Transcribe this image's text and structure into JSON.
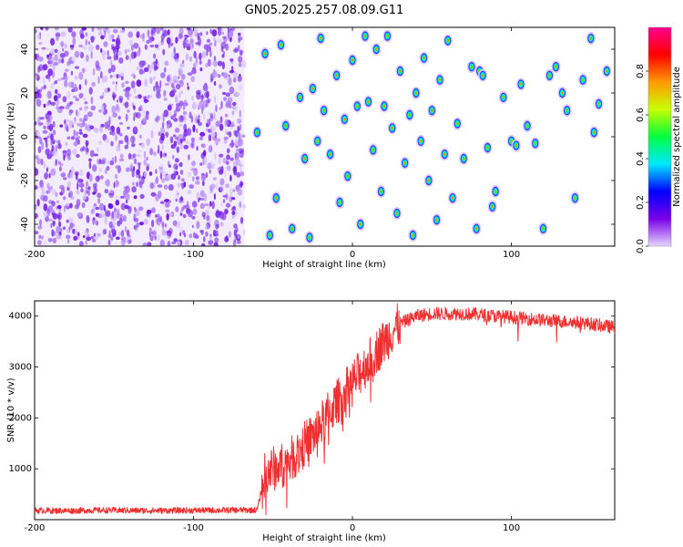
{
  "title": "GN05.2025.257.08.09.G11",
  "chart_data": [
    {
      "type": "heatmap",
      "xlabel": "Height of straight line (km)",
      "ylabel": "Frequency (Hz)",
      "xlim": [
        -200,
        165
      ],
      "ylim": [
        -50,
        50
      ],
      "x_ticks": [
        -200,
        -100,
        0,
        100
      ],
      "y_ticks": [
        -40,
        -20,
        0,
        20,
        40
      ],
      "colorbar": {
        "label": "Normalized spectral amplitude",
        "range": [
          0,
          1
        ],
        "ticks": [
          "0.0",
          "0.2",
          "0.4",
          "0.6",
          "0.8"
        ],
        "colors": [
          "#e8d4ff",
          "#7a00e8",
          "#0000ff",
          "#00e8ff",
          "#00ff40",
          "#c8ff00",
          "#ff9a00",
          "#ff0000",
          "#ff0090"
        ]
      },
      "noise_region": {
        "x_range": [
          -200,
          -68
        ],
        "color": "#7a2ae8"
      },
      "features": [
        {
          "x": -60,
          "y": 2
        },
        {
          "x": -55,
          "y": 38
        },
        {
          "x": -52,
          "y": -45
        },
        {
          "x": -48,
          "y": -28
        },
        {
          "x": -45,
          "y": 42
        },
        {
          "x": -42,
          "y": 5
        },
        {
          "x": -38,
          "y": -42
        },
        {
          "x": -33,
          "y": 18
        },
        {
          "x": -30,
          "y": -10
        },
        {
          "x": -27,
          "y": -46
        },
        {
          "x": -25,
          "y": 22
        },
        {
          "x": -22,
          "y": -2
        },
        {
          "x": -20,
          "y": 45
        },
        {
          "x": -18,
          "y": 12
        },
        {
          "x": -14,
          "y": -8
        },
        {
          "x": -10,
          "y": 28
        },
        {
          "x": -8,
          "y": -30
        },
        {
          "x": -5,
          "y": 8
        },
        {
          "x": -3,
          "y": -18
        },
        {
          "x": 0,
          "y": 35
        },
        {
          "x": 3,
          "y": 14
        },
        {
          "x": 5,
          "y": -40
        },
        {
          "x": 8,
          "y": 46
        },
        {
          "x": 10,
          "y": 16
        },
        {
          "x": 13,
          "y": -6
        },
        {
          "x": 15,
          "y": 40
        },
        {
          "x": 18,
          "y": -25
        },
        {
          "x": 20,
          "y": 14
        },
        {
          "x": 22,
          "y": 46
        },
        {
          "x": 25,
          "y": 4
        },
        {
          "x": 28,
          "y": -35
        },
        {
          "x": 30,
          "y": 30
        },
        {
          "x": 33,
          "y": -12
        },
        {
          "x": 36,
          "y": 10
        },
        {
          "x": 38,
          "y": -45
        },
        {
          "x": 40,
          "y": 20
        },
        {
          "x": 43,
          "y": -2
        },
        {
          "x": 45,
          "y": 36
        },
        {
          "x": 48,
          "y": -20
        },
        {
          "x": 50,
          "y": 12
        },
        {
          "x": 53,
          "y": -38
        },
        {
          "x": 55,
          "y": 26
        },
        {
          "x": 58,
          "y": -8
        },
        {
          "x": 60,
          "y": 44
        },
        {
          "x": 63,
          "y": -28
        },
        {
          "x": 66,
          "y": 6
        },
        {
          "x": 70,
          "y": -10
        },
        {
          "x": 75,
          "y": 32
        },
        {
          "x": 78,
          "y": -42
        },
        {
          "x": 80,
          "y": 30
        },
        {
          "x": 82,
          "y": 28
        },
        {
          "x": 85,
          "y": -5
        },
        {
          "x": 88,
          "y": -32
        },
        {
          "x": 90,
          "y": -25
        },
        {
          "x": 95,
          "y": 18
        },
        {
          "x": 100,
          "y": -2
        },
        {
          "x": 103,
          "y": -4
        },
        {
          "x": 106,
          "y": 24
        },
        {
          "x": 110,
          "y": 5
        },
        {
          "x": 115,
          "y": -3
        },
        {
          "x": 120,
          "y": -42
        },
        {
          "x": 124,
          "y": 28
        },
        {
          "x": 128,
          "y": 32
        },
        {
          "x": 132,
          "y": 20
        },
        {
          "x": 135,
          "y": 12
        },
        {
          "x": 140,
          "y": -28
        },
        {
          "x": 145,
          "y": 26
        },
        {
          "x": 150,
          "y": 45
        },
        {
          "x": 152,
          "y": 2
        },
        {
          "x": 155,
          "y": 15
        },
        {
          "x": 160,
          "y": 30
        }
      ]
    },
    {
      "type": "line",
      "xlabel": "Height of straight line (km)",
      "ylabel": "SNR (10 * v/v)",
      "xlim": [
        -200,
        165
      ],
      "ylim": [
        0,
        4300
      ],
      "x_ticks": [
        -200,
        -100,
        0,
        100
      ],
      "y_ticks": [
        1000,
        2000,
        3000,
        4000
      ],
      "series": [
        {
          "color": "#f03030",
          "x": [
            -200,
            -180,
            -160,
            -140,
            -120,
            -100,
            -80,
            -60,
            -57,
            -55,
            -50,
            -45,
            -40,
            -35,
            -30,
            -25,
            -20,
            -15,
            -10,
            -5,
            0,
            5,
            10,
            15,
            20,
            25,
            30,
            40,
            50,
            60,
            70,
            80,
            90,
            100,
            110,
            120,
            130,
            140,
            150,
            160,
            165
          ],
          "y": [
            180,
            175,
            185,
            180,
            178,
            182,
            185,
            190,
            600,
            900,
            1000,
            1050,
            1150,
            1300,
            1500,
            1650,
            1850,
            2100,
            2300,
            2500,
            2700,
            2900,
            3100,
            3300,
            3500,
            3700,
            3850,
            4000,
            4050,
            4050,
            4050,
            4030,
            4000,
            3980,
            3950,
            3920,
            3900,
            3880,
            3850,
            3800,
            3780
          ]
        }
      ]
    }
  ]
}
